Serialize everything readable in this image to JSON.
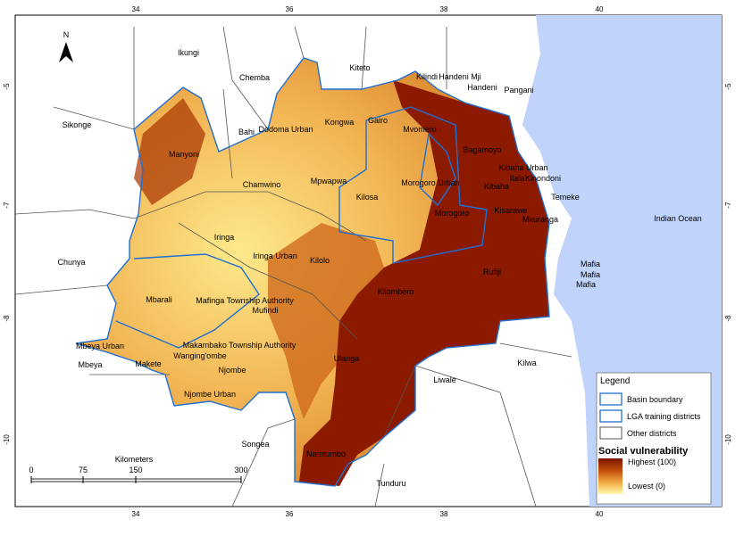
{
  "map": {
    "north_label": "N",
    "longitude_labels": [
      "34",
      "36",
      "38",
      "40"
    ],
    "latitude_labels": [
      "-5",
      "-7",
      "-8",
      "-10"
    ],
    "places": [
      "Ikungi",
      "Chemba",
      "Kiteto",
      "Kilindi",
      "Handeni Mji",
      "Handeni",
      "Pangani",
      "Sikonge",
      "Kongwa",
      "Gairo",
      "Mvomero",
      "Bahi",
      "Dodoma Urban",
      "Bagamoyo",
      "Manyoni",
      "Kibaha Urban",
      "Ilala",
      "Kinondoni",
      "Chamwino",
      "Mpwapwa",
      "Kibaha",
      "Temeke",
      "Kilosa",
      "Morogoro Urban",
      "Kisarawe",
      "Morogoro",
      "Mkuranga",
      "Iringa",
      "Indian Ocean",
      "Iringa Urban",
      "Kilolo",
      "Chunya",
      "Mafia",
      "Mafia",
      "Mafia",
      "Rufiji",
      "Kilombero",
      "Mbarali",
      "Mafinga Township Authority",
      "Mufindi",
      "Mbeya Urban",
      "Makambako Township Authority",
      "Wanging'ombe",
      "Mbeya",
      "Makete",
      "Njombe",
      "Ulanga",
      "Kilwa",
      "Liwale",
      "Njombe Urban",
      "Songea",
      "Namtumbo",
      "Tunduru"
    ],
    "scale_bar": {
      "title": "Kilometers",
      "labels": [
        "0",
        "75",
        "150",
        "300"
      ]
    },
    "legend": {
      "title": "Legend",
      "items": [
        "Basin boundary",
        "LGA training districts",
        "Other districts"
      ],
      "raster_title": "Social vulnerability",
      "high": "Highest (100)",
      "low": "Lowest (0)"
    }
  }
}
